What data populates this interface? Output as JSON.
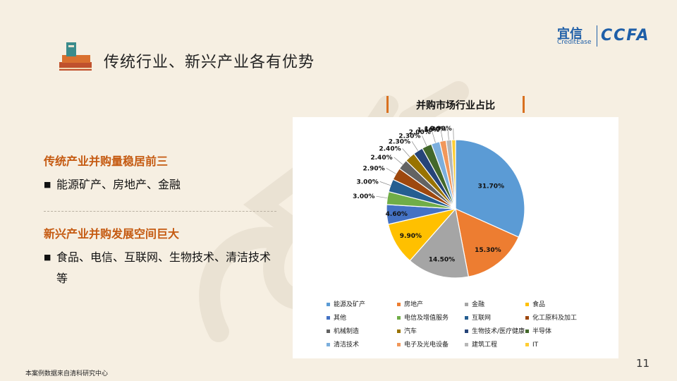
{
  "header": {
    "title": "传统行业、新兴产业各有优势"
  },
  "logo": {
    "cn": "宜信",
    "en": "CreditEase",
    "ccfa": "CCFA"
  },
  "left": {
    "traditional": {
      "heading": "传统产业并购量稳居前三",
      "bullet": "能源矿产、房地产、金融"
    },
    "emerging": {
      "heading": "新兴产业并购发展空间巨大",
      "bullet": "食品、电信、互联网、生物技术、清洁技术等"
    }
  },
  "bullet_mark": "■",
  "footnote": "本案例数据来自清科研究中心",
  "page_number": "11",
  "chart_data": {
    "type": "pie",
    "title": "并购市场行业占比",
    "legend_position": "bottom",
    "slices": [
      {
        "label": "能源及矿产",
        "value": 31.7,
        "display": "31.70%",
        "color": "#5b9bd5"
      },
      {
        "label": "房地产",
        "value": 15.3,
        "display": "15.30%",
        "color": "#ed7d31"
      },
      {
        "label": "金融",
        "value": 14.5,
        "display": "14.50%",
        "color": "#a5a5a5"
      },
      {
        "label": "食品",
        "value": 9.9,
        "display": "9.90%",
        "color": "#ffc000"
      },
      {
        "label": "其他",
        "value": 4.6,
        "display": "4.60%",
        "color": "#4472c4"
      },
      {
        "label": "电信及增值服务",
        "value": 3.0,
        "display": "3.00%",
        "color": "#70ad47"
      },
      {
        "label": "互联网",
        "value": 3.0,
        "display": "3.00%",
        "color": "#255e91"
      },
      {
        "label": "化工原料及加工",
        "value": 2.9,
        "display": "2.90%",
        "color": "#9e480e"
      },
      {
        "label": "机械制造",
        "value": 2.4,
        "display": "2.40%",
        "color": "#636363"
      },
      {
        "label": "汽车",
        "value": 2.4,
        "display": "2.40%",
        "color": "#997300"
      },
      {
        "label": "生物技术/医疗健康",
        "value": 2.3,
        "display": "2.30%",
        "color": "#264478"
      },
      {
        "label": "半导体",
        "value": 2.3,
        "display": "2.30%",
        "color": "#43682b"
      },
      {
        "label": "清洁技术",
        "value": 2.0,
        "display": "2.00%",
        "color": "#7cafdd"
      },
      {
        "label": "电子及光电设备",
        "value": 1.5,
        "display": "1.50%",
        "color": "#f1975a"
      },
      {
        "label": "建筑工程",
        "value": 1.3,
        "display": "1.30%",
        "color": "#b7b7b7"
      },
      {
        "label": "IT",
        "value": 0.9,
        "display": "0.90%",
        "color": "#ffcd33"
      }
    ]
  }
}
